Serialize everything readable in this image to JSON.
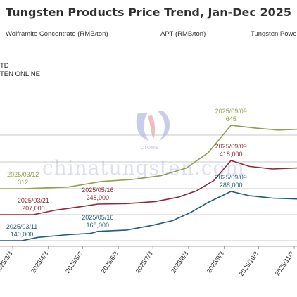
{
  "title": "Tungsten Products Price Trend, Jan-Dec 2025",
  "legend": [
    {
      "label": "Wolframite Concentrate (RMB/ton)",
      "color": "#1f5c7a"
    },
    {
      "label": "APT (RMB/ton)",
      "color": "#8b2a35"
    },
    {
      "label": "Tungsten Powc",
      "color": "#8ea04a"
    }
  ],
  "source_lines": [
    "TD",
    "TEN ONLINE"
  ],
  "watermark": {
    "text": "chinatungsten.com",
    "logo_text": "CTOMS"
  },
  "chart_data": {
    "type": "line",
    "title": "Tungsten Products Price Trend, Jan-Dec 2025",
    "x_ticks": [
      "2025/3/3",
      "2025/4/3",
      "2025/5/3",
      "2025/6/3",
      "2025/7/3",
      "2025/8/3",
      "2025/9/3",
      "2025/10/3",
      "2025/11/3"
    ],
    "grid": "horizontal",
    "series": [
      {
        "name": "Wolframite Concentrate (RMB/ton)",
        "color": "#1f5c7a",
        "points": [
          [
            "2025-01-02",
            140000
          ],
          [
            "2025-03-11",
            140000
          ],
          [
            "2025-03-25",
            150000
          ],
          [
            "2025-04-20",
            158000
          ],
          [
            "2025-05-10",
            162000
          ],
          [
            "2025-05-16",
            168000
          ],
          [
            "2025-06-10",
            172000
          ],
          [
            "2025-07-01",
            185000
          ],
          [
            "2025-07-20",
            200000
          ],
          [
            "2025-08-05",
            225000
          ],
          [
            "2025-08-20",
            255000
          ],
          [
            "2025-09-09",
            288000
          ],
          [
            "2025-09-25",
            275000
          ],
          [
            "2025-10-15",
            268000
          ],
          [
            "2025-11-10",
            265000
          ]
        ]
      },
      {
        "name": "APT (RMB/ton)",
        "color": "#8b2a35",
        "points": [
          [
            "2025-01-02",
            207000
          ],
          [
            "2025-03-21",
            207000
          ],
          [
            "2025-04-10",
            225000
          ],
          [
            "2025-05-01",
            238000
          ],
          [
            "2025-05-16",
            248000
          ],
          [
            "2025-06-10",
            250000
          ],
          [
            "2025-07-05",
            258000
          ],
          [
            "2025-07-25",
            275000
          ],
          [
            "2025-08-10",
            300000
          ],
          [
            "2025-08-25",
            340000
          ],
          [
            "2025-09-09",
            418000
          ],
          [
            "2025-09-25",
            395000
          ],
          [
            "2025-10-15",
            385000
          ],
          [
            "2025-11-10",
            390000
          ]
        ]
      },
      {
        "name": "Tungsten Powc",
        "color": "#8ea04a",
        "points": [
          [
            "2025-01-02",
            312
          ],
          [
            "2025-03-12",
            312
          ],
          [
            "2025-04-20",
            320
          ],
          [
            "2025-05-20",
            350
          ],
          [
            "2025-06-15",
            360
          ],
          [
            "2025-07-10",
            380
          ],
          [
            "2025-08-01",
            420
          ],
          [
            "2025-08-20",
            500
          ],
          [
            "2025-09-09",
            645
          ],
          [
            "2025-10-01",
            630
          ],
          [
            "2025-10-20",
            620
          ],
          [
            "2025-11-10",
            625
          ]
        ]
      }
    ],
    "annotations": [
      {
        "series": "Wolframite Concentrate (RMB/ton)",
        "date": "2025/03/11",
        "value": "140,000",
        "at": "2025-03-11"
      },
      {
        "series": "Wolframite Concentrate (RMB/ton)",
        "date": "2025/05/16",
        "value": "168,000",
        "at": "2025-05-16"
      },
      {
        "series": "Wolframite Concentrate (RMB/ton)",
        "date": "2025/09/09",
        "value": "288,000",
        "at": "2025-09-09"
      },
      {
        "series": "APT (RMB/ton)",
        "date": "2025/03/21",
        "value": "207,000",
        "at": "2025-03-21"
      },
      {
        "series": "APT (RMB/ton)",
        "date": "2025/05/16",
        "value": "248,000",
        "at": "2025-05-16"
      },
      {
        "series": "APT (RMB/ton)",
        "date": "2025/09/09",
        "value": "418,000",
        "at": "2025-09-09"
      },
      {
        "series": "Tungsten Powc",
        "date": "2025/03/12",
        "value": "312",
        "at": "2025-03-12"
      },
      {
        "series": "Tungsten Powc",
        "date": "2025/09/09",
        "value": "645",
        "at": "2025-09-09"
      }
    ]
  }
}
